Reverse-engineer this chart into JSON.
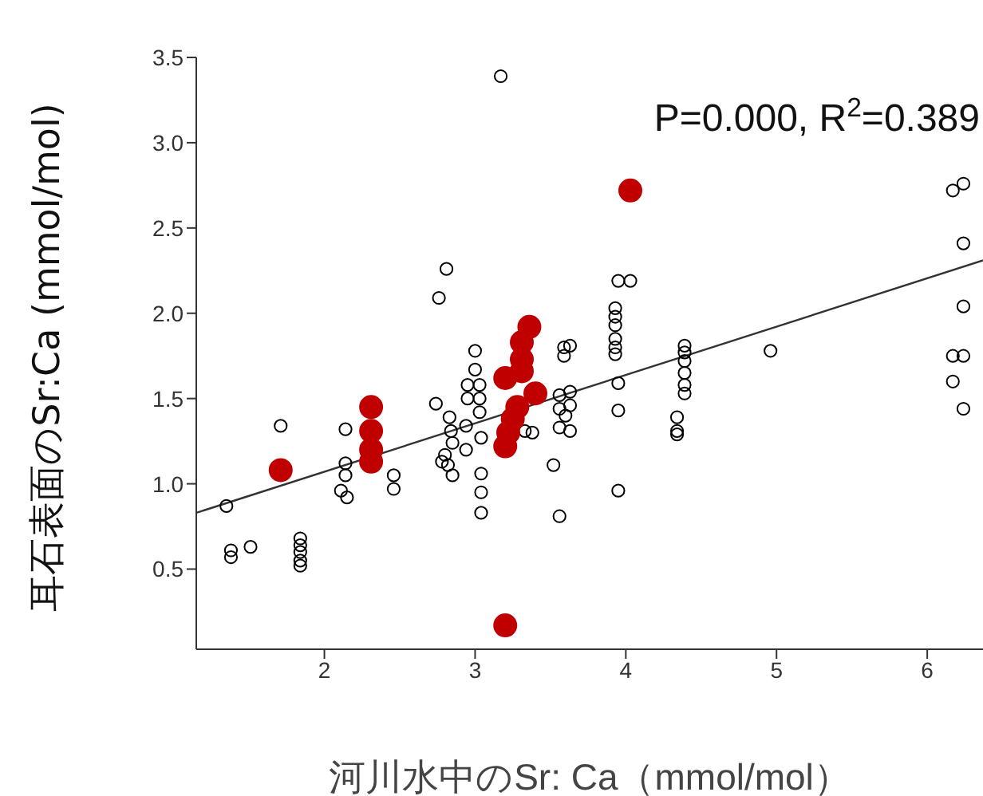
{
  "chart_data": {
    "type": "scatter",
    "xlabel": "河川水中のSr: Ca（mmol/mol）",
    "ylabel": "耳石表面のSr:Ca (mmol/mol)",
    "annotations": [
      "P=0.000, R$^{2}$=0.389"
    ],
    "xlim": [
      1.15,
      6.37
    ],
    "ylim": [
      0.03,
      3.5
    ],
    "xticks": [
      2,
      3,
      4,
      5,
      6
    ],
    "yticks": [
      0.5,
      {
        "value": 1,
        "label": "1.0"
      },
      1.5,
      {
        "value": 2,
        "label": "2.0"
      },
      2.5,
      {
        "value": 3,
        "label": "3.0"
      },
      3.5
    ],
    "series": [
      {
        "color": "#000000",
        "marker": "circle",
        "x": [
          1.35,
          1.38,
          1.38,
          1.51,
          1.84,
          1.84,
          1.84,
          1.84,
          1.84,
          1.71,
          2.14,
          2.14,
          2.14,
          2.11,
          2.15,
          2.46,
          2.46,
          2.76,
          2.81,
          2.74,
          2.83,
          2.84,
          2.85,
          2.8,
          2.82,
          2.85,
          2.78,
          2.94,
          2.94,
          3.0,
          3.0,
          2.95,
          2.95,
          3.03,
          3.03,
          3.03,
          3.04,
          3.04,
          3.04,
          3.04,
          3.17,
          3.33,
          3.38,
          3.52,
          3.56,
          3.59,
          3.63,
          3.59,
          3.56,
          3.63,
          3.56,
          3.63,
          3.56,
          3.63,
          3.6,
          3.95,
          4.03,
          3.93,
          3.93,
          3.93,
          3.93,
          3.93,
          3.93,
          3.95,
          3.95,
          3.95,
          4.39,
          4.39,
          4.39,
          4.39,
          4.39,
          4.39,
          4.34,
          4.34,
          4.34,
          4.96,
          6.17,
          6.24,
          6.24,
          6.24,
          6.17,
          6.24,
          6.17,
          6.24
        ],
        "values": [
          0.87,
          0.61,
          0.57,
          0.63,
          0.68,
          0.64,
          0.6,
          0.55,
          0.52,
          1.34,
          1.32,
          1.12,
          1.05,
          0.96,
          0.92,
          1.05,
          0.97,
          2.09,
          2.26,
          1.47,
          1.39,
          1.31,
          1.24,
          1.17,
          1.11,
          1.05,
          1.13,
          1.34,
          1.2,
          1.78,
          1.67,
          1.58,
          1.5,
          1.58,
          1.5,
          1.42,
          1.27,
          1.06,
          0.95,
          0.83,
          3.39,
          1.31,
          1.3,
          1.11,
          0.81,
          1.8,
          1.81,
          1.75,
          1.52,
          1.54,
          1.44,
          1.46,
          1.33,
          1.31,
          1.4,
          2.19,
          2.19,
          2.03,
          1.98,
          1.93,
          1.85,
          1.8,
          1.76,
          1.59,
          1.43,
          0.96,
          1.81,
          1.77,
          1.72,
          1.65,
          1.58,
          1.53,
          1.39,
          1.31,
          1.29,
          1.78,
          2.72,
          2.76,
          2.41,
          2.04,
          1.75,
          1.75,
          1.6,
          1.44
        ]
      },
      {
        "color": "#c00000",
        "marker": "circle",
        "x": [
          1.71,
          2.31,
          2.31,
          2.31,
          2.31,
          3.2,
          3.36,
          3.31,
          3.31,
          3.31,
          3.2,
          3.2,
          3.4,
          3.28,
          3.25,
          3.22,
          4.03
        ],
        "values": [
          1.08,
          1.45,
          1.31,
          1.2,
          1.13,
          0.17,
          1.92,
          1.83,
          1.73,
          1.66,
          1.62,
          1.22,
          1.53,
          1.45,
          1.38,
          1.3,
          2.72
        ]
      },
      {
        "type": "line",
        "color": "#333333",
        "x": [
          1.15,
          6.37
        ],
        "values": [
          0.83,
          2.31
        ]
      }
    ]
  }
}
